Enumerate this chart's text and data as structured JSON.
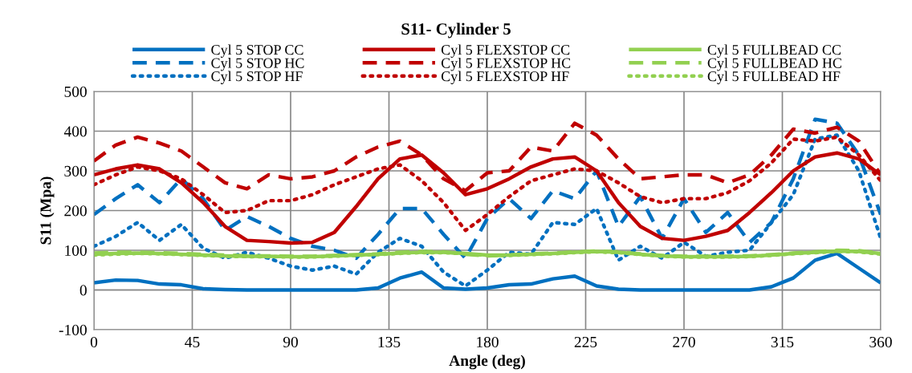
{
  "chart_data": {
    "type": "line",
    "title": "S11- Cylinder 5",
    "xlabel": "Angle (deg)",
    "ylabel": "S11 (Mpa)",
    "x": [
      0,
      10,
      20,
      30,
      40,
      50,
      60,
      70,
      80,
      90,
      100,
      110,
      120,
      130,
      140,
      150,
      160,
      170,
      180,
      190,
      200,
      210,
      220,
      230,
      240,
      250,
      260,
      270,
      280,
      290,
      300,
      310,
      320,
      330,
      340,
      350,
      360
    ],
    "xlim": [
      0,
      360
    ],
    "xticks": [
      0,
      45,
      90,
      135,
      180,
      225,
      270,
      315,
      360
    ],
    "ylim": [
      -100,
      500
    ],
    "yticks": [
      -100,
      0,
      100,
      200,
      300,
      400,
      500
    ],
    "grid": true,
    "legend": "top",
    "marker": "none",
    "series": [
      {
        "name": "Cyl 5 STOP CC",
        "color": "#0070c0",
        "line_style": "solid",
        "values": [
          18,
          25,
          24,
          15,
          13,
          3,
          1,
          0,
          0,
          0,
          0,
          0,
          0,
          5,
          30,
          45,
          5,
          2,
          5,
          13,
          15,
          28,
          35,
          10,
          2,
          0,
          0,
          0,
          0,
          0,
          0,
          8,
          30,
          75,
          92,
          55,
          18
        ]
      },
      {
        "name": "Cyl 5 STOP HC",
        "color": "#0070c0",
        "line_style": "dashed",
        "values": [
          190,
          230,
          265,
          220,
          280,
          230,
          150,
          185,
          160,
          130,
          110,
          100,
          80,
          140,
          205,
          205,
          140,
          80,
          180,
          230,
          180,
          250,
          230,
          300,
          160,
          235,
          130,
          230,
          145,
          195,
          120,
          170,
          280,
          430,
          420,
          340,
          190
        ]
      },
      {
        "name": "Cyl 5 STOP HF",
        "color": "#0070c0",
        "line_style": "dotted",
        "values": [
          110,
          135,
          170,
          125,
          165,
          105,
          80,
          95,
          80,
          60,
          50,
          60,
          40,
          95,
          130,
          110,
          45,
          10,
          50,
          95,
          90,
          170,
          165,
          205,
          75,
          110,
          80,
          120,
          85,
          95,
          100,
          170,
          240,
          380,
          390,
          300,
          130
        ]
      },
      {
        "name": "Cyl 5 FLEXSTOP CC",
        "color": "#c00000",
        "line_style": "solid",
        "values": [
          290,
          305,
          315,
          305,
          270,
          220,
          160,
          125,
          122,
          118,
          120,
          145,
          210,
          280,
          330,
          340,
          295,
          240,
          255,
          280,
          310,
          330,
          335,
          300,
          220,
          160,
          130,
          125,
          135,
          150,
          195,
          245,
          300,
          335,
          345,
          330,
          290
        ]
      },
      {
        "name": "Cyl 5 FLEXSTOP HC",
        "color": "#c00000",
        "line_style": "dashed",
        "values": [
          325,
          365,
          385,
          370,
          350,
          310,
          270,
          255,
          290,
          280,
          285,
          300,
          335,
          360,
          375,
          340,
          280,
          250,
          295,
          300,
          360,
          350,
          420,
          390,
          330,
          280,
          285,
          290,
          290,
          270,
          290,
          340,
          405,
          395,
          410,
          375,
          290
        ]
      },
      {
        "name": "Cyl 5 FLEXSTOP HF",
        "color": "#c00000",
        "line_style": "dotted",
        "values": [
          265,
          290,
          310,
          300,
          280,
          240,
          195,
          200,
          225,
          225,
          240,
          265,
          285,
          305,
          315,
          275,
          220,
          150,
          190,
          235,
          275,
          290,
          305,
          300,
          270,
          235,
          220,
          230,
          230,
          245,
          275,
          320,
          380,
          375,
          385,
          340,
          275
        ]
      },
      {
        "name": "Cyl 5 FULLBEAD CC",
        "color": "#92d050",
        "line_style": "solid",
        "values": [
          90,
          92,
          93,
          92,
          90,
          88,
          86,
          85,
          85,
          84,
          84,
          86,
          88,
          90,
          93,
          95,
          95,
          92,
          88,
          88,
          90,
          92,
          95,
          97,
          95,
          90,
          86,
          84,
          84,
          84,
          85,
          88,
          92,
          95,
          98,
          97,
          92
        ]
      },
      {
        "name": "Cyl 5 FULLBEAD HC",
        "color": "#92d050",
        "line_style": "dashed",
        "values": [
          93,
          95,
          95,
          94,
          92,
          90,
          88,
          86,
          86,
          85,
          85,
          87,
          89,
          91,
          95,
          97,
          96,
          90,
          86,
          88,
          91,
          93,
          96,
          98,
          96,
          91,
          87,
          85,
          85,
          85,
          86,
          89,
          93,
          96,
          100,
          99,
          93
        ]
      },
      {
        "name": "Cyl 5 FULLBEAD HF",
        "color": "#92d050",
        "line_style": "dotted",
        "values": [
          88,
          90,
          92,
          91,
          89,
          87,
          85,
          84,
          84,
          83,
          83,
          85,
          87,
          89,
          92,
          94,
          94,
          91,
          87,
          87,
          89,
          91,
          94,
          96,
          94,
          89,
          85,
          83,
          83,
          83,
          84,
          87,
          91,
          94,
          97,
          96,
          90
        ]
      }
    ]
  }
}
